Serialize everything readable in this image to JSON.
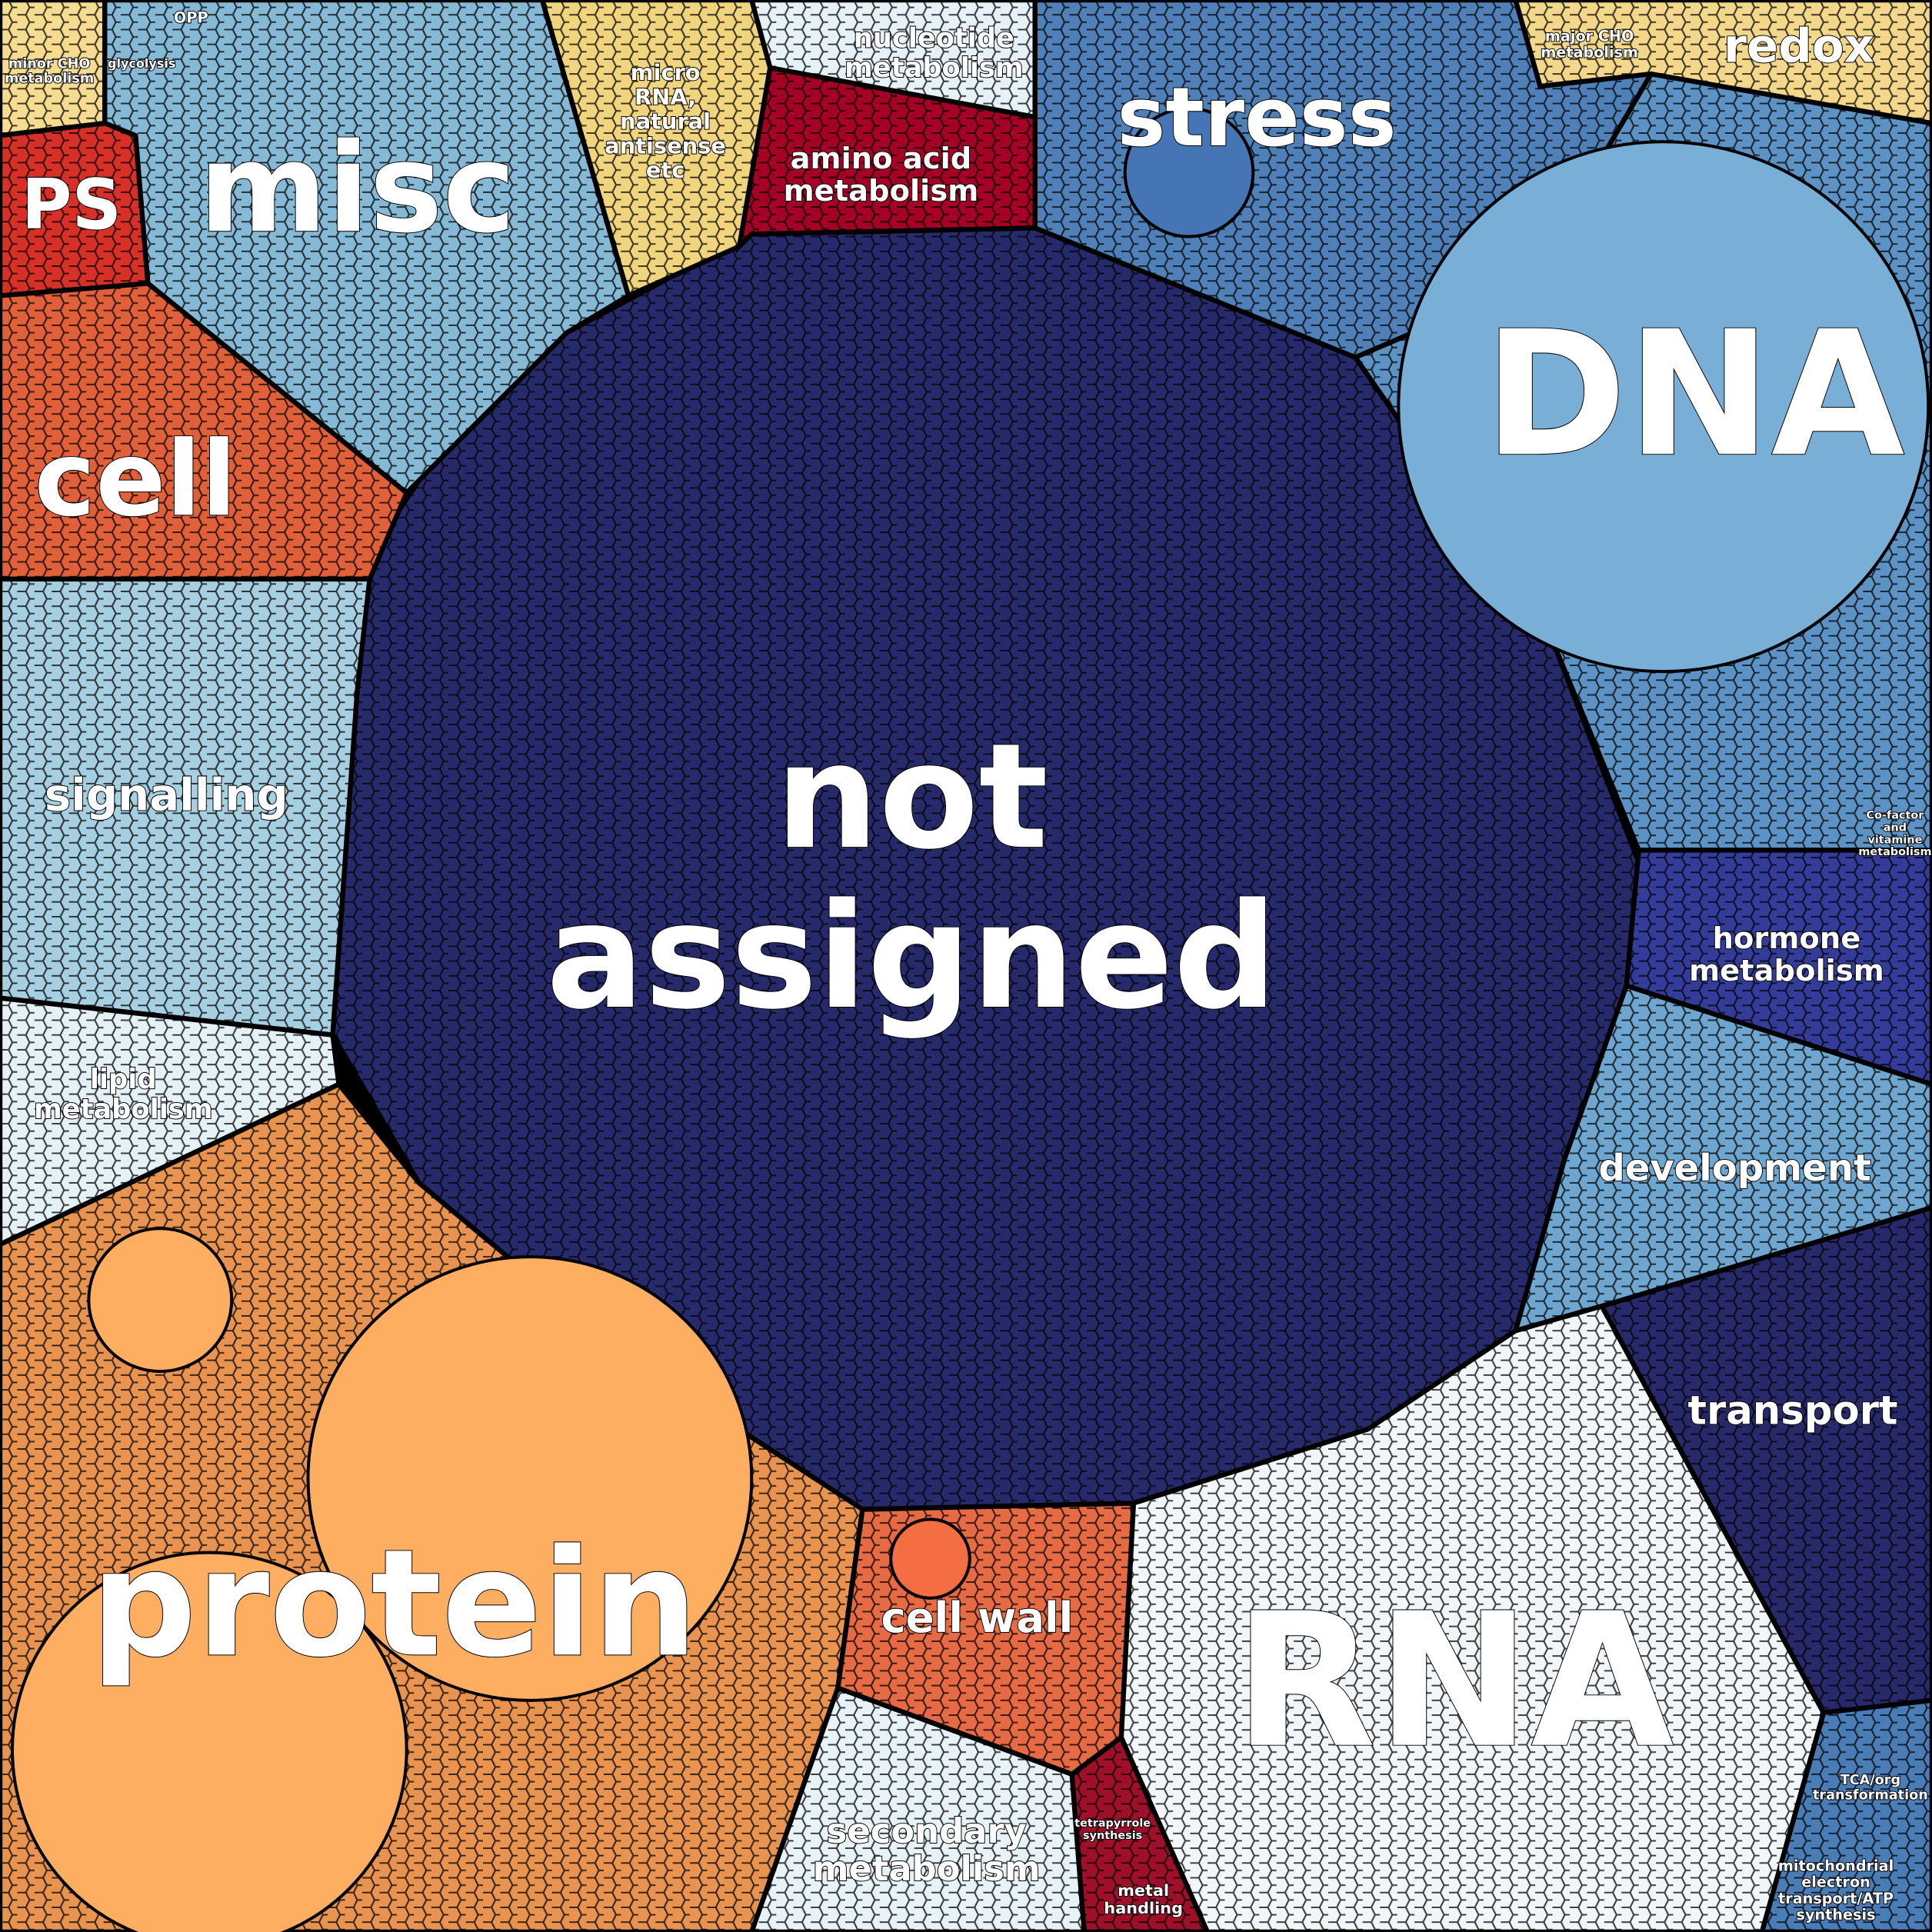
{
  "regions": [
    {
      "label": [
        "not",
        "assigned"
      ]
    },
    {
      "label": [
        "DNA"
      ]
    },
    {
      "label": [
        "RNA"
      ]
    },
    {
      "label": [
        "protein"
      ]
    },
    {
      "label": [
        "misc"
      ]
    },
    {
      "label": [
        "stress"
      ]
    },
    {
      "label": [
        "cell"
      ]
    },
    {
      "label": [
        "PS"
      ]
    },
    {
      "label": [
        "redox"
      ]
    },
    {
      "label": [
        "signalling"
      ]
    },
    {
      "label": [
        "hormone",
        "metabolism"
      ]
    },
    {
      "label": [
        "development"
      ]
    },
    {
      "label": [
        "transport"
      ]
    },
    {
      "label": [
        "cell wall"
      ]
    },
    {
      "label": [
        "amino acid",
        "metabolism"
      ]
    },
    {
      "label": [
        "nucleotide",
        "metabolism"
      ]
    },
    {
      "label": [
        "micro",
        "RNA,",
        "natural",
        "antisense",
        "etc"
      ]
    },
    {
      "label": [
        "lipid",
        "metabolism"
      ]
    },
    {
      "label": [
        "secondary",
        "metabolism"
      ]
    },
    {
      "label": [
        "major CHO",
        "metabolism"
      ]
    },
    {
      "label": [
        "minor CHO",
        "metabolism"
      ]
    },
    {
      "label": [
        "OPP"
      ]
    },
    {
      "label": [
        "glycolysis"
      ]
    },
    {
      "label": [
        "Co-factor",
        "and",
        "vitamine",
        "metabolism"
      ]
    },
    {
      "label": [
        "TCA/org",
        "transformation"
      ]
    },
    {
      "label": [
        "mitochondrial",
        "electron",
        "transport/ATP",
        "synthesis"
      ]
    },
    {
      "label": [
        "tetrapyrrole",
        "synthesis"
      ]
    },
    {
      "label": [
        "metal",
        "handling"
      ]
    }
  ]
}
